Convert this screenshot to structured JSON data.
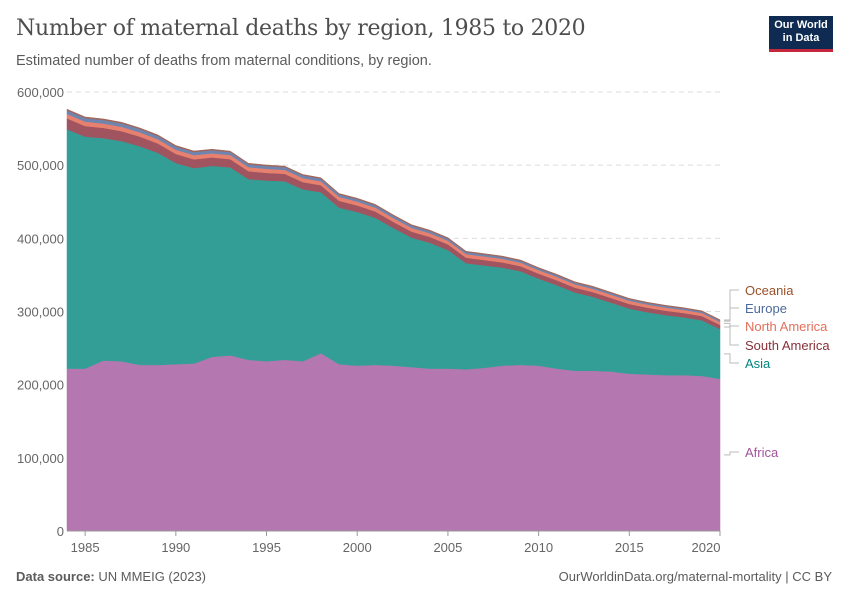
{
  "header": {
    "title": "Number of maternal deaths by region, 1985 to 2020",
    "subtitle": "Estimated number of deaths from maternal conditions, by region.",
    "logo": "Our World in Data"
  },
  "footer": {
    "source_label": "Data source:",
    "source": "UN MMEIG (2023)",
    "link": "OurWorldinData.org/maternal-mortality | CC BY"
  },
  "chart_data": {
    "type": "area",
    "stacked": true,
    "title": "Number of maternal deaths by region, 1985 to 2020",
    "xlabel": "",
    "ylabel": "",
    "xlim": [
      1984,
      2020
    ],
    "ylim": [
      0,
      600000
    ],
    "x_ticks": [
      1985,
      1990,
      1995,
      2000,
      2005,
      2010,
      2015,
      2020
    ],
    "y_ticks": [
      0,
      100000,
      200000,
      300000,
      400000,
      500000,
      600000
    ],
    "y_tick_labels": [
      "0",
      "100,000",
      "200,000",
      "300,000",
      "400,000",
      "500,000",
      "600,000"
    ],
    "grid": "horizontal dashed",
    "legend": "right, labels at line ends",
    "x": [
      1984,
      1985,
      1986,
      1987,
      1988,
      1989,
      1990,
      1991,
      1992,
      1993,
      1994,
      1995,
      1996,
      1997,
      1998,
      1999,
      2000,
      2001,
      2002,
      2003,
      2004,
      2005,
      2006,
      2007,
      2008,
      2009,
      2010,
      2011,
      2012,
      2013,
      2014,
      2015,
      2016,
      2017,
      2018,
      2019,
      2020
    ],
    "series": [
      {
        "name": "Africa",
        "color": "#b477b0",
        "label_color": "#a2559c",
        "values": [
          222000,
          222000,
          233000,
          232000,
          227000,
          227000,
          228000,
          229000,
          238000,
          240000,
          234000,
          232000,
          234000,
          232000,
          243000,
          228000,
          226000,
          227000,
          226000,
          224000,
          222000,
          222000,
          221000,
          223000,
          226000,
          227000,
          226000,
          222000,
          219000,
          219000,
          218000,
          215000,
          214000,
          213000,
          213000,
          212000,
          208000
        ]
      },
      {
        "name": "Asia",
        "color": "#339e96",
        "label_color": "#00847e",
        "values": [
          327000,
          317000,
          304000,
          301000,
          299000,
          290000,
          275000,
          267000,
          261000,
          257000,
          247000,
          247000,
          244000,
          235000,
          220000,
          214000,
          210000,
          201000,
          188000,
          177000,
          172000,
          162000,
          145000,
          140000,
          134000,
          128000,
          119000,
          114000,
          107000,
          101000,
          94000,
          89000,
          85000,
          82000,
          79000,
          76000,
          68000
        ]
      },
      {
        "name": "South America",
        "color": "#a05460",
        "label_color": "#883039",
        "values": [
          15000,
          14500,
          14000,
          13600,
          13200,
          12800,
          12400,
          12000,
          11600,
          11200,
          10800,
          10500,
          10200,
          9900,
          9600,
          9300,
          9000,
          8700,
          8400,
          8200,
          8000,
          7800,
          7600,
          7400,
          7200,
          7000,
          6800,
          6700,
          6600,
          6500,
          6400,
          6300,
          6200,
          6100,
          6000,
          5900,
          5800
        ]
      },
      {
        "name": "North America",
        "color": "#e8806e",
        "label_color": "#e56e5a",
        "values": [
          6000,
          6000,
          5900,
          5900,
          5800,
          5800,
          5700,
          5700,
          5600,
          5600,
          5500,
          5500,
          5400,
          5400,
          5300,
          5300,
          5200,
          5200,
          5100,
          5100,
          5000,
          5000,
          4900,
          4900,
          4800,
          4800,
          4700,
          4700,
          4600,
          4500,
          4500,
          4400,
          4300,
          4300,
          4200,
          4100,
          4000
        ]
      },
      {
        "name": "Europe",
        "color": "#6f85b0",
        "label_color": "#4c6a9c",
        "values": [
          5000,
          4900,
          4800,
          4700,
          4600,
          4500,
          4400,
          4300,
          4200,
          4100,
          4000,
          3900,
          3800,
          3700,
          3600,
          3500,
          3400,
          3300,
          3200,
          3100,
          3000,
          2900,
          2800,
          2700,
          2600,
          2500,
          2400,
          2400,
          2300,
          2300,
          2200,
          2200,
          2100,
          2100,
          2000,
          2000,
          2000
        ]
      },
      {
        "name": "Oceania",
        "color": "#a0665a",
        "label_color": "#9a5129",
        "values": [
          1500,
          1500,
          1500,
          1500,
          1400,
          1400,
          1400,
          1400,
          1400,
          1300,
          1300,
          1300,
          1300,
          1300,
          1300,
          1200,
          1200,
          1200,
          1200,
          1200,
          1200,
          1200,
          1100,
          1100,
          1100,
          1100,
          1100,
          1100,
          1100,
          1100,
          1100,
          1000,
          1000,
          1000,
          1000,
          1000,
          1000
        ]
      }
    ]
  }
}
